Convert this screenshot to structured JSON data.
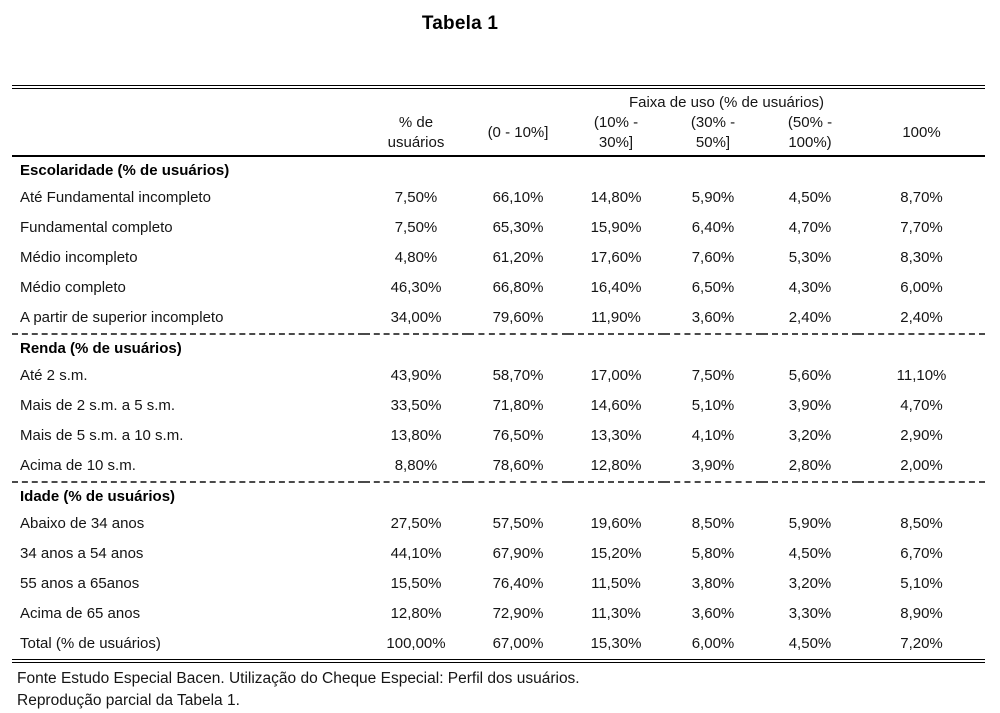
{
  "title": "Tabela 1",
  "chart_data": {
    "type": "table",
    "title": "Tabela 1",
    "group_header": "Faixa de uso (% de usuários)",
    "columns": [
      "% de\nusuários",
      "(0 - 10%]",
      "(10% -\n30%]",
      "(30% -\n50%]",
      "(50% -\n100%)",
      "100%"
    ],
    "sections": [
      {
        "header": "Escolaridade (% de usuários)",
        "divider_before": false,
        "rows": [
          {
            "label": "Até Fundamental incompleto",
            "values": [
              "7,50%",
              "66,10%",
              "14,80%",
              "5,90%",
              "4,50%",
              "8,70%"
            ]
          },
          {
            "label": "Fundamental completo",
            "values": [
              "7,50%",
              "65,30%",
              "15,90%",
              "6,40%",
              "4,70%",
              "7,70%"
            ]
          },
          {
            "label": "Médio incompleto",
            "values": [
              "4,80%",
              "61,20%",
              "17,60%",
              "7,60%",
              "5,30%",
              "8,30%"
            ]
          },
          {
            "label": "Médio completo",
            "values": [
              "46,30%",
              "66,80%",
              "16,40%",
              "6,50%",
              "4,30%",
              "6,00%"
            ]
          },
          {
            "label": "A partir de superior incompleto",
            "values": [
              "34,00%",
              "79,60%",
              "11,90%",
              "3,60%",
              "2,40%",
              "2,40%"
            ]
          }
        ]
      },
      {
        "header": "Renda (% de usuários)",
        "divider_before": true,
        "rows": [
          {
            "label": "Até 2 s.m.",
            "values": [
              "43,90%",
              "58,70%",
              "17,00%",
              "7,50%",
              "5,60%",
              "11,10%"
            ]
          },
          {
            "label": "Mais de 2 s.m. a 5 s.m.",
            "values": [
              "33,50%",
              "71,80%",
              "14,60%",
              "5,10%",
              "3,90%",
              "4,70%"
            ]
          },
          {
            "label": "Mais de 5 s.m. a 10 s.m.",
            "values": [
              "13,80%",
              "76,50%",
              "13,30%",
              "4,10%",
              "3,20%",
              "2,90%"
            ]
          },
          {
            "label": "Acima de 10 s.m.",
            "values": [
              "8,80%",
              "78,60%",
              "12,80%",
              "3,90%",
              "2,80%",
              "2,00%"
            ]
          }
        ]
      },
      {
        "header": "Idade (% de usuários)",
        "divider_before": true,
        "rows": [
          {
            "label": "Abaixo de 34 anos",
            "values": [
              "27,50%",
              "57,50%",
              "19,60%",
              "8,50%",
              "5,90%",
              "8,50%"
            ]
          },
          {
            "label": "34 anos a 54 anos",
            "values": [
              "44,10%",
              "67,90%",
              "15,20%",
              "5,80%",
              "4,50%",
              "6,70%"
            ]
          },
          {
            "label": "55 anos a 65anos",
            "values": [
              "15,50%",
              "76,40%",
              "11,50%",
              "3,80%",
              "3,20%",
              "5,10%"
            ]
          },
          {
            "label": "Acima de 65 anos",
            "values": [
              "12,80%",
              "72,90%",
              "11,30%",
              "3,60%",
              "3,30%",
              "8,90%"
            ]
          }
        ]
      }
    ],
    "total": {
      "label": "Total (% de usuários)",
      "values": [
        "100,00%",
        "67,00%",
        "15,30%",
        "6,00%",
        "4,50%",
        "7,20%"
      ]
    }
  },
  "footer": {
    "source_line": "Fonte Estudo Especial Bacen. Utilização do Cheque Especial: Perfil dos usuários.",
    "note_line": "Reprodução parcial da Tabela 1."
  }
}
